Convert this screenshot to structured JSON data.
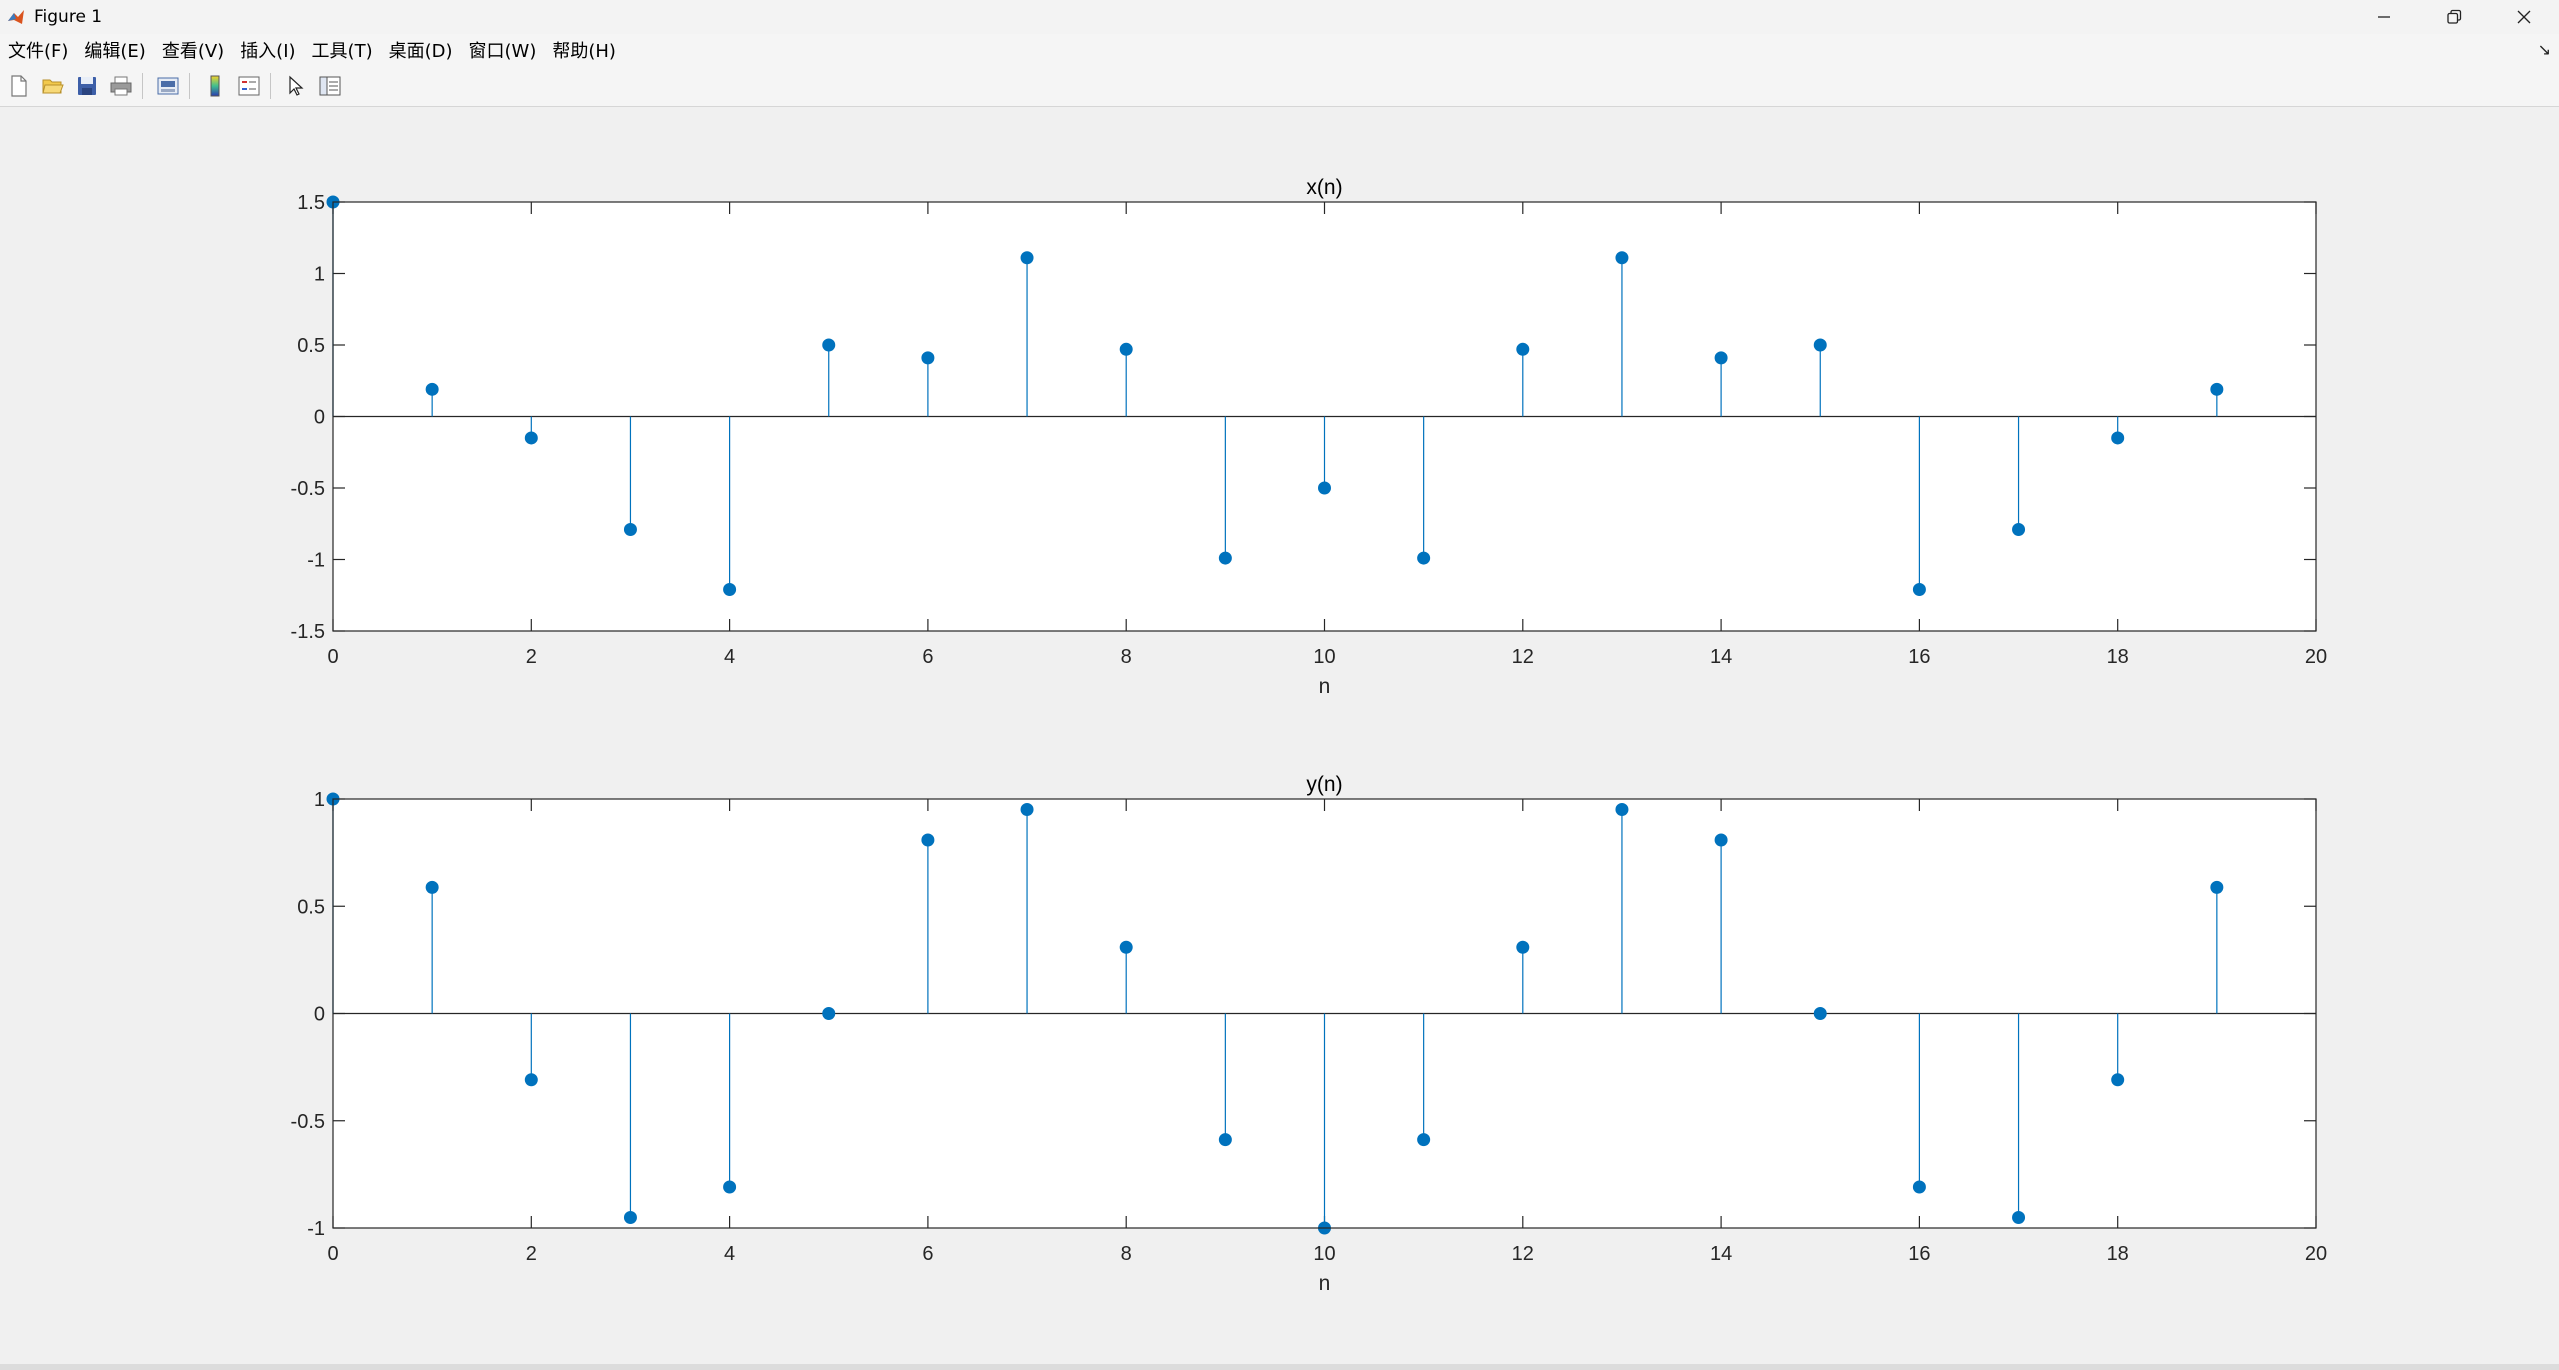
{
  "window": {
    "title": "Figure 1",
    "controls": [
      "minimize-icon",
      "restore-icon",
      "close-icon"
    ]
  },
  "menu": {
    "items": [
      "文件(F)",
      "编辑(E)",
      "查看(V)",
      "插入(I)",
      "工具(T)",
      "桌面(D)",
      "窗口(W)",
      "帮助(H)"
    ]
  },
  "toolbar": {
    "icons": [
      "new-figure-icon",
      "open-file-icon",
      "save-icon",
      "print-icon",
      "print-preview-icon",
      "colorbar-icon",
      "legend-icon",
      "pointer-icon",
      "property-inspector-icon"
    ]
  },
  "colors": {
    "stem": "#0072bd",
    "axis": "#262626",
    "background": "#f0f0f0",
    "plot_bg": "#ffffff"
  },
  "chart_data": [
    {
      "type": "stem",
      "title": "x(n)",
      "xlabel": "n",
      "ylabel": "",
      "xlim": [
        0,
        20
      ],
      "ylim": [
        -1.5,
        1.5
      ],
      "xticks": [
        0,
        2,
        4,
        6,
        8,
        10,
        12,
        14,
        16,
        18,
        20
      ],
      "yticks": [
        -1.5,
        -1,
        -0.5,
        0,
        0.5,
        1,
        1.5
      ],
      "ytick_labels": [
        "-1.5",
        "-1",
        "-0.5",
        "0",
        "0.5",
        "1",
        "1.5"
      ],
      "grid": false,
      "x": [
        0,
        1,
        2,
        3,
        4,
        5,
        6,
        7,
        8,
        9,
        10,
        11,
        12,
        13,
        14,
        15,
        16,
        17,
        18,
        19
      ],
      "values": [
        1.5,
        0.19,
        -0.15,
        -0.79,
        -1.21,
        0.5,
        0.41,
        1.11,
        0.47,
        -0.99,
        -0.5,
        -0.99,
        0.47,
        1.11,
        0.41,
        0.5,
        -1.21,
        -0.79,
        -0.15,
        0.19
      ]
    },
    {
      "type": "stem",
      "title": "y(n)",
      "xlabel": "n",
      "ylabel": "",
      "xlim": [
        0,
        20
      ],
      "ylim": [
        -1,
        1
      ],
      "xticks": [
        0,
        2,
        4,
        6,
        8,
        10,
        12,
        14,
        16,
        18,
        20
      ],
      "yticks": [
        -1,
        -0.5,
        0,
        0.5,
        1
      ],
      "ytick_labels": [
        "-1",
        "-0.5",
        "0",
        "0.5",
        "1"
      ],
      "grid": false,
      "x": [
        0,
        1,
        2,
        3,
        4,
        5,
        6,
        7,
        8,
        9,
        10,
        11,
        12,
        13,
        14,
        15,
        16,
        17,
        18,
        19
      ],
      "values": [
        1,
        0.588,
        -0.309,
        -0.951,
        -0.809,
        0,
        0.809,
        0.951,
        0.309,
        -0.588,
        -1,
        -0.588,
        0.309,
        0.951,
        0.809,
        0,
        -0.809,
        -0.951,
        -0.309,
        0.588
      ]
    }
  ]
}
